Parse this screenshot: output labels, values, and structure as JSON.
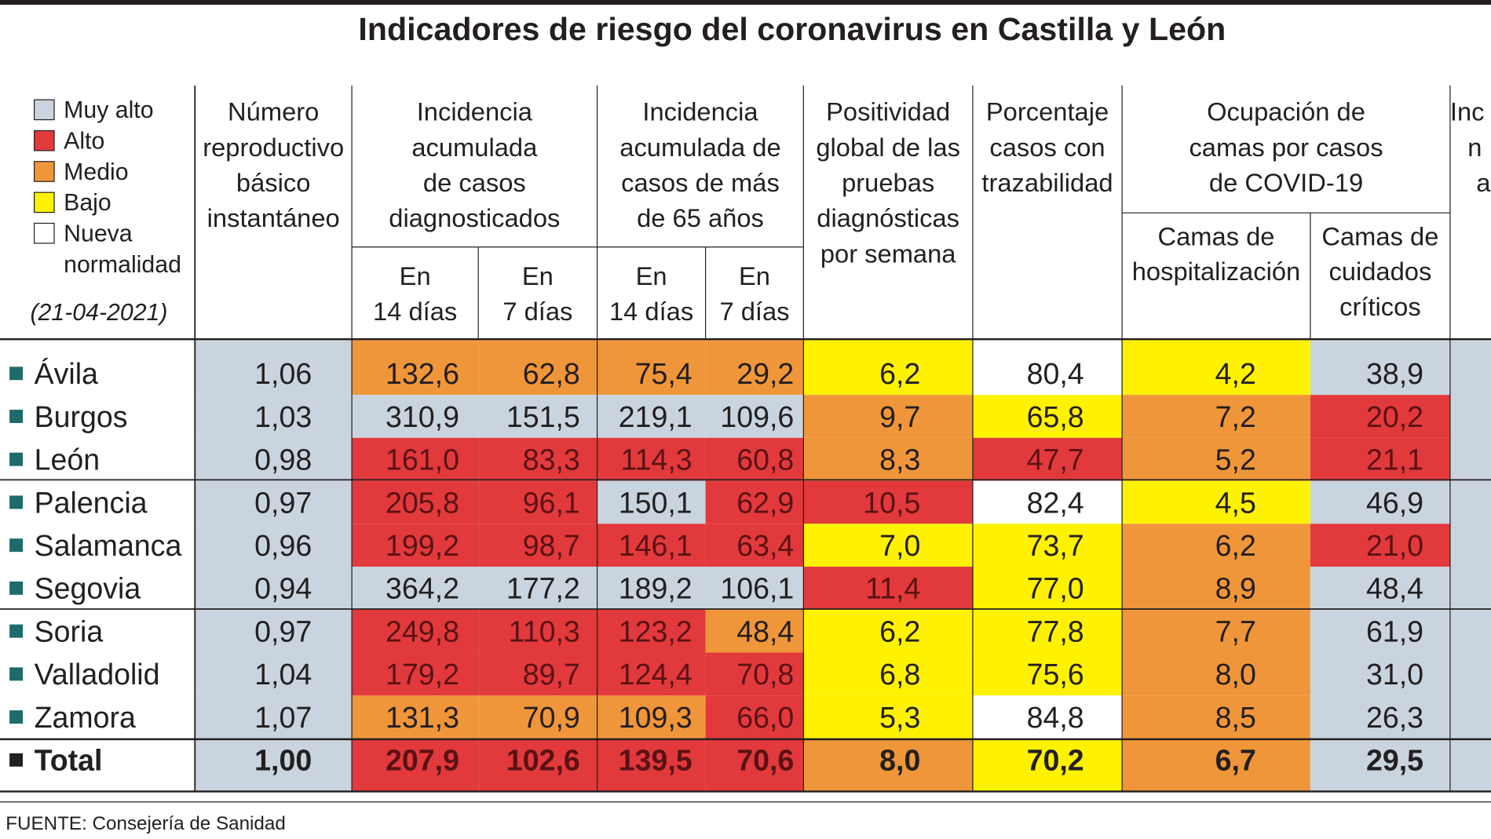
{
  "title": "Indicadores de riesgo del coronavirus en Castilla y León",
  "legend": {
    "items": [
      {
        "label": "Muy alto",
        "color": "#c9d4de"
      },
      {
        "label": "Alto",
        "color": "#e2393c"
      },
      {
        "label": "Medio",
        "color": "#f0963a"
      },
      {
        "label": "Bajo",
        "color": "#fff200"
      },
      {
        "label": [
          "Nueva",
          "normalidad"
        ],
        "color": "#ffffff"
      }
    ],
    "date": "(21-04-2021)"
  },
  "table": {
    "headers": [
      {
        "lines": [
          "Número",
          "reproductivo",
          "básico",
          "instantáneo"
        ]
      },
      {
        "lines": [
          "Incidencia",
          "acumulada",
          "de casos",
          "diagnosticados"
        ],
        "sub": [
          [
            "En",
            "14 días"
          ],
          [
            "En",
            "7 días"
          ]
        ]
      },
      {
        "lines": [
          "Incidencia",
          "acumulada de",
          "casos de más",
          "de 65 años"
        ],
        "sub": [
          [
            "En",
            "14 días"
          ],
          [
            "En",
            "7 días"
          ]
        ]
      },
      {
        "lines": [
          "Positividad",
          "global de las",
          "pruebas",
          "diagnósticas",
          "por semana"
        ]
      },
      {
        "lines": [
          "Porcentaje",
          "casos con",
          "trazabilidad"
        ]
      },
      {
        "lines": [
          "Ocupación de",
          "camas por casos",
          "de COVID-19"
        ],
        "sub": [
          [
            "Camas de",
            "hospitalización"
          ],
          [
            "Camas de",
            "cuidados",
            "críticos"
          ]
        ]
      },
      {
        "lines": [
          "Inc",
          "n",
          "a"
        ]
      }
    ],
    "rows": [
      {
        "name": "Ávila",
        "cells": [
          "1,06",
          "132,6",
          "62,8",
          "75,4",
          "29,2",
          "6,2",
          "80,4",
          "4,2",
          "38,9"
        ],
        "colors": [
          "#c9d4de",
          "#f0963a",
          "#f0963a",
          "#f0963a",
          "#f0963a",
          "#fff200",
          "#ffffff",
          "#fff200",
          "#c9d4de"
        ]
      },
      {
        "name": "Burgos",
        "cells": [
          "1,03",
          "310,9",
          "151,5",
          "219,1",
          "109,6",
          "9,7",
          "65,8",
          "7,2",
          "20,2"
        ],
        "colors": [
          "#c9d4de",
          "#c9d4de",
          "#c9d4de",
          "#c9d4de",
          "#c9d4de",
          "#f0963a",
          "#fff200",
          "#f0963a",
          "#e2393c"
        ]
      },
      {
        "name": "León",
        "cells": [
          "0,98",
          "161,0",
          "83,3",
          "114,3",
          "60,8",
          "8,3",
          "47,7",
          "5,2",
          "21,1"
        ],
        "colors": [
          "#c9d4de",
          "#e2393c",
          "#e2393c",
          "#e2393c",
          "#e2393c",
          "#f0963a",
          "#e2393c",
          "#f0963a",
          "#e2393c"
        ]
      },
      {
        "name": "Palencia",
        "cells": [
          "0,97",
          "205,8",
          "96,1",
          "150,1",
          "62,9",
          "10,5",
          "82,4",
          "4,5",
          "46,9"
        ],
        "colors": [
          "#c9d4de",
          "#e2393c",
          "#e2393c",
          "#c9d4de",
          "#e2393c",
          "#e2393c",
          "#ffffff",
          "#fff200",
          "#c9d4de"
        ]
      },
      {
        "name": "Salamanca",
        "cells": [
          "0,96",
          "199,2",
          "98,7",
          "146,1",
          "63,4",
          "7,0",
          "73,7",
          "6,2",
          "21,0"
        ],
        "colors": [
          "#c9d4de",
          "#e2393c",
          "#e2393c",
          "#e2393c",
          "#e2393c",
          "#fff200",
          "#fff200",
          "#f0963a",
          "#e2393c"
        ]
      },
      {
        "name": "Segovia",
        "cells": [
          "0,94",
          "364,2",
          "177,2",
          "189,2",
          "106,1",
          "11,4",
          "77,0",
          "8,9",
          "48,4"
        ],
        "colors": [
          "#c9d4de",
          "#c9d4de",
          "#c9d4de",
          "#c9d4de",
          "#c9d4de",
          "#e2393c",
          "#fff200",
          "#f0963a",
          "#c9d4de"
        ]
      },
      {
        "name": "Soria",
        "cells": [
          "0,97",
          "249,8",
          "110,3",
          "123,2",
          "48,4",
          "6,2",
          "77,8",
          "7,7",
          "61,9"
        ],
        "colors": [
          "#c9d4de",
          "#e2393c",
          "#e2393c",
          "#e2393c",
          "#f0963a",
          "#fff200",
          "#fff200",
          "#f0963a",
          "#c9d4de"
        ]
      },
      {
        "name": "Valladolid",
        "cells": [
          "1,04",
          "179,2",
          "89,7",
          "124,4",
          "70,8",
          "6,8",
          "75,6",
          "8,0",
          "31,0"
        ],
        "colors": [
          "#c9d4de",
          "#e2393c",
          "#e2393c",
          "#e2393c",
          "#e2393c",
          "#fff200",
          "#fff200",
          "#f0963a",
          "#c9d4de"
        ]
      },
      {
        "name": "Zamora",
        "cells": [
          "1,07",
          "131,3",
          "70,9",
          "109,3",
          "66,0",
          "5,3",
          "84,8",
          "8,5",
          "26,3"
        ],
        "colors": [
          "#c9d4de",
          "#f0963a",
          "#f0963a",
          "#f0963a",
          "#e2393c",
          "#fff200",
          "#ffffff",
          "#f0963a",
          "#c9d4de"
        ]
      },
      {
        "name": "Total",
        "cells": [
          "1,00",
          "207,9",
          "102,6",
          "139,5",
          "70,6",
          "8,0",
          "70,2",
          "6,7",
          "29,5"
        ],
        "colors": [
          "#c9d4de",
          "#e2393c",
          "#e2393c",
          "#e2393c",
          "#e2393c",
          "#f0963a",
          "#fff200",
          "#f0963a",
          "#c9d4de"
        ]
      }
    ]
  },
  "source": "FUENTE: Consejería de Sanidad"
}
